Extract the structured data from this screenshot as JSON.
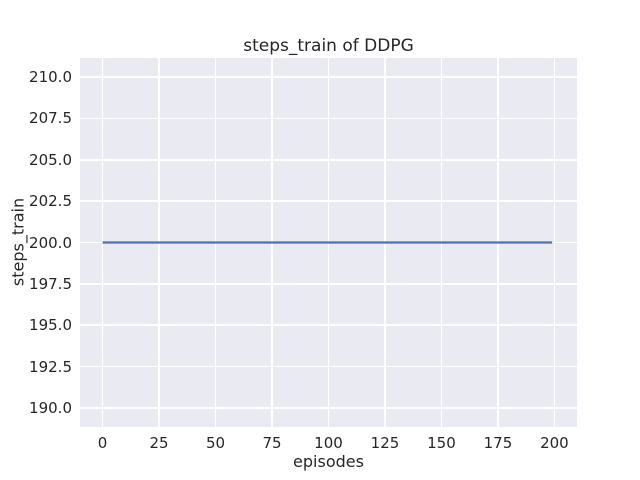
{
  "chart_data": {
    "type": "line",
    "title": "steps_train of DDPG",
    "xlabel": "episodes",
    "ylabel": "steps_train",
    "x_ticks": [
      0,
      25,
      50,
      75,
      100,
      125,
      150,
      175,
      200
    ],
    "x_tick_labels": [
      "0",
      "25",
      "50",
      "75",
      "100",
      "125",
      "150",
      "175",
      "200"
    ],
    "y_ticks": [
      190.0,
      192.5,
      195.0,
      197.5,
      200.0,
      202.5,
      205.0,
      207.5,
      210.0
    ],
    "y_tick_labels": [
      "190.0",
      "192.5",
      "195.0",
      "197.5",
      "200.0",
      "202.5",
      "205.0",
      "207.5",
      "210.0"
    ],
    "xlim": [
      -10,
      210
    ],
    "ylim": [
      188.85,
      211.15
    ],
    "grid": true,
    "legend": false,
    "series": [
      {
        "name": "DDPG",
        "x": [
          0,
          199
        ],
        "y": [
          200,
          200
        ],
        "color": "#4c72b0"
      }
    ],
    "colors": {
      "figure_background": "#ffffff",
      "plot_background": "#eaeaf2",
      "gridline": "#ffffff",
      "text": "#262626"
    }
  }
}
